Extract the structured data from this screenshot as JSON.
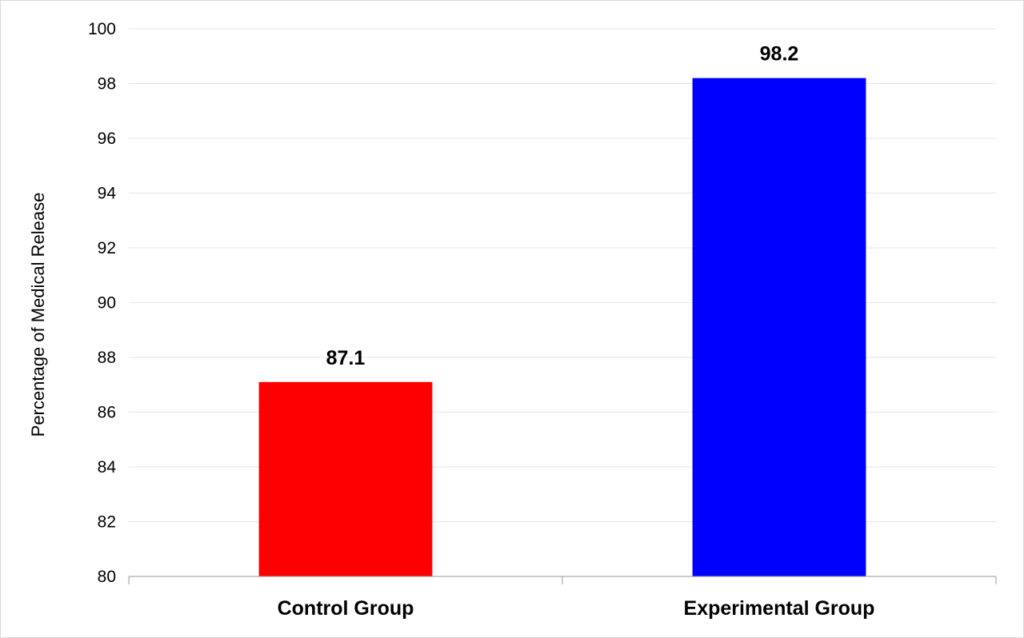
{
  "chart_data": {
    "type": "bar",
    "title": "",
    "xlabel": "",
    "ylabel": "Percentage of Medical Release",
    "categories": [
      "Control Group",
      "Experimental Group"
    ],
    "values": [
      87.1,
      98.2
    ],
    "data_labels": [
      "87.1",
      "98.2"
    ],
    "bar_colors": [
      "#ff0000",
      "#0000ff"
    ],
    "ylim": [
      80,
      100
    ],
    "yticks": [
      80,
      82,
      84,
      86,
      88,
      90,
      92,
      94,
      96,
      98,
      100
    ],
    "ytick_labels": [
      "80",
      "82",
      "84",
      "86",
      "88",
      "90",
      "92",
      "94",
      "96",
      "98",
      "100"
    ],
    "grid": true,
    "legend": "none"
  }
}
